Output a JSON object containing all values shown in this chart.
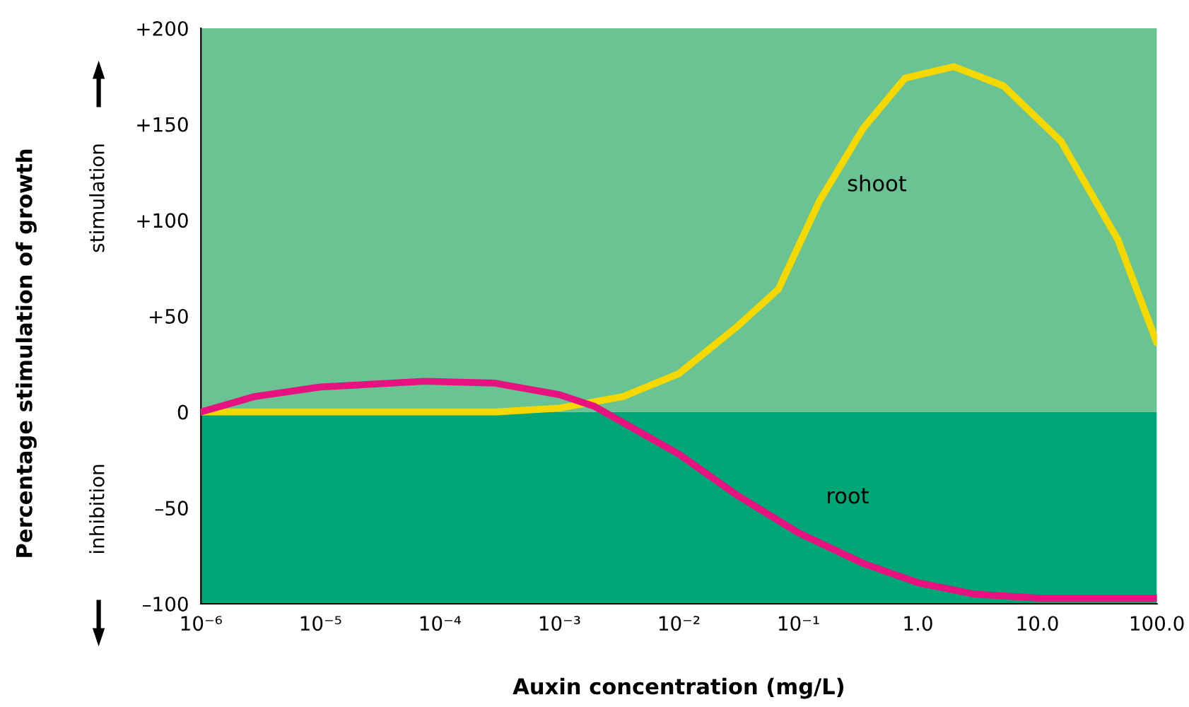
{
  "chart_data": {
    "type": "line",
    "xlabel": "Auxin concentration (mg/L)",
    "ylabel": "Percentage stimulation of growth",
    "log": "x",
    "xlim": [
      1e-06,
      100
    ],
    "xticks": [
      {
        "value": 1e-06,
        "label": "10⁻⁶"
      },
      {
        "value": 1e-05,
        "label": "10⁻⁵"
      },
      {
        "value": 0.0001,
        "label": "10⁻⁴"
      },
      {
        "value": 0.001,
        "label": "10⁻³"
      },
      {
        "value": 0.01,
        "label": "10⁻²"
      },
      {
        "value": 0.1,
        "label": "10⁻¹"
      },
      {
        "value": 1,
        "label": "1.0"
      },
      {
        "value": 10,
        "label": "10.0"
      },
      {
        "value": 100,
        "label": "100.0"
      }
    ],
    "ylim": [
      -100,
      200
    ],
    "yticks": [
      {
        "value": 200,
        "label": "+200"
      },
      {
        "value": 150,
        "label": "+150"
      },
      {
        "value": 100,
        "label": "+100"
      },
      {
        "value": 50,
        "label": "+50"
      },
      0,
      {
        "value": -50,
        "label": "–50"
      },
      {
        "value": -100,
        "label": "–100"
      }
    ],
    "grid": false,
    "legend": false,
    "bands": [
      {
        "axis": "y",
        "from": 0,
        "to": 200,
        "color": "#69c393"
      },
      {
        "axis": "y",
        "from": -100,
        "to": 0,
        "color": "#00a676"
      }
    ],
    "series": [
      {
        "name": "shoot",
        "color": "#f5d800",
        "x": [
          1e-06,
          1e-05,
          0.0001,
          0.0003,
          0.001,
          0.0034,
          0.01,
          0.03,
          0.068,
          0.15,
          0.35,
          0.78,
          2.0,
          5.2,
          15.8,
          47,
          100
        ],
        "values": [
          0,
          0,
          0,
          0,
          2,
          8,
          20,
          44,
          64,
          110,
          148,
          174,
          180,
          170,
          141,
          90,
          36
        ]
      },
      {
        "name": "root",
        "color": "#e5127f",
        "x": [
          1e-06,
          2.8e-06,
          1e-05,
          7.5e-05,
          0.00029,
          0.001,
          0.00195,
          0.01,
          0.03,
          0.1,
          0.35,
          1,
          3,
          10,
          100
        ],
        "values": [
          0,
          8,
          13,
          16,
          15,
          9,
          3,
          -22,
          -43,
          -63,
          -79,
          -89,
          -95,
          -97,
          -97
        ]
      }
    ],
    "annotations": [
      "stimulation",
      "inhibition"
    ]
  }
}
